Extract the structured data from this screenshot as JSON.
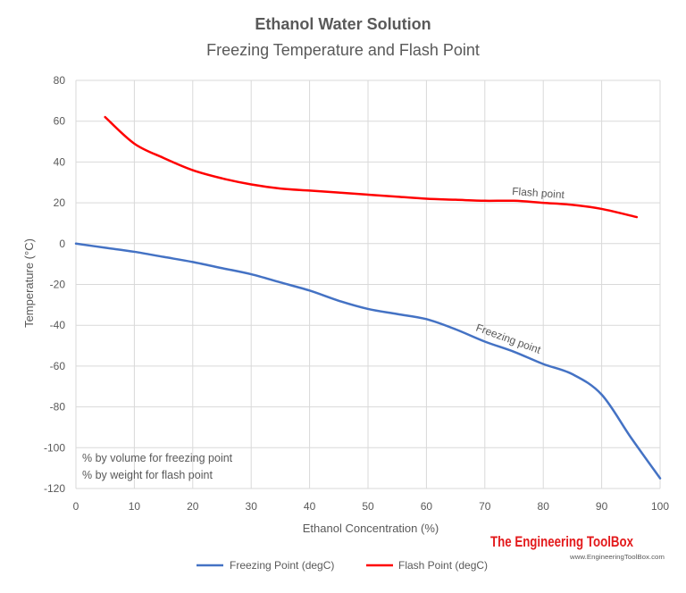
{
  "chart_data": {
    "type": "line",
    "title": "Ethanol Water Solution",
    "subtitle": "Freezing Temperature and Flash  Point",
    "xlabel": "Ethanol Concentration  (%)",
    "ylabel": "Temperature  (°C)",
    "xlim": [
      0,
      100
    ],
    "ylim": [
      -120,
      80
    ],
    "x_ticks": [
      0,
      10,
      20,
      30,
      40,
      50,
      60,
      70,
      80,
      90,
      100
    ],
    "y_ticks": [
      80,
      60,
      40,
      20,
      0,
      -20,
      -40,
      -60,
      -80,
      -100,
      -120
    ],
    "grid": true,
    "legend_position": "bottom",
    "series": [
      {
        "name": "Freezing Point (degC)",
        "color": "#4472C4",
        "annotation": "Freezing point",
        "x": [
          0,
          5,
          10,
          15,
          20,
          25,
          30,
          35,
          40,
          45,
          50,
          55,
          60,
          65,
          70,
          75,
          80,
          85,
          90,
          95,
          100
        ],
        "y": [
          0,
          -2,
          -4,
          -6.5,
          -9,
          -12,
          -15,
          -19,
          -23,
          -28,
          -32,
          -34.5,
          -37,
          -42,
          -48,
          -53,
          -59,
          -64,
          -74,
          -95,
          -115
        ]
      },
      {
        "name": "Flash Point (degC)",
        "color": "#FF0000",
        "annotation": "Flash point",
        "x": [
          5,
          10,
          15,
          20,
          25,
          30,
          35,
          40,
          45,
          50,
          55,
          60,
          65,
          70,
          75,
          80,
          85,
          90,
          96
        ],
        "y": [
          62,
          49,
          42,
          36,
          32,
          29,
          27,
          26,
          25,
          24,
          23,
          22,
          21.5,
          21,
          21,
          20,
          19,
          17,
          13
        ]
      }
    ],
    "notes": [
      "% by volume for freezing point",
      "% by weight for flash point"
    ]
  },
  "branding": {
    "logo_text": "The Engineering ToolBox",
    "url_text": "www.EngineeringToolBox.com"
  }
}
